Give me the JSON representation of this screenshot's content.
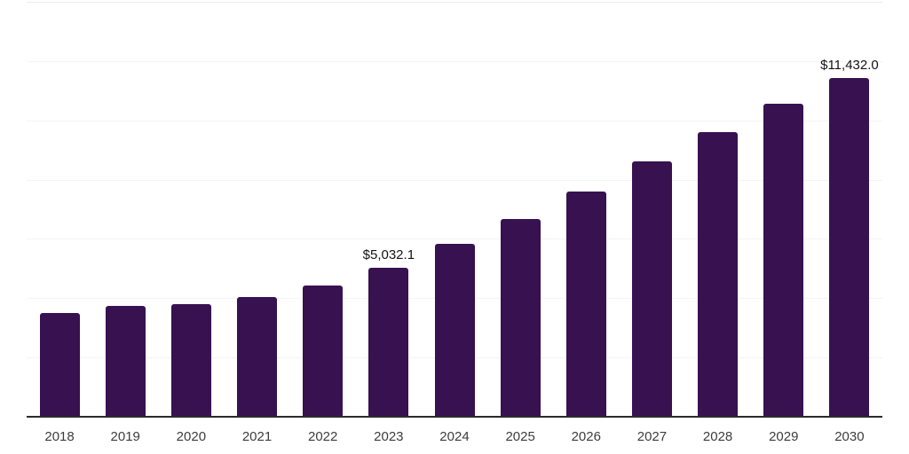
{
  "chart_data": {
    "type": "bar",
    "title": "",
    "xlabel": "",
    "ylabel": "",
    "categories": [
      "2018",
      "2019",
      "2020",
      "2021",
      "2022",
      "2023",
      "2024",
      "2025",
      "2026",
      "2027",
      "2028",
      "2029",
      "2030"
    ],
    "values": [
      3510,
      3750,
      3810,
      4050,
      4440,
      5032.1,
      5820,
      6670,
      7585,
      8615,
      9605,
      10550,
      11432.0
    ],
    "bar_labels": [
      "",
      "",
      "",
      "",
      "",
      "$5,032.1",
      "",
      "",
      "",
      "",
      "",
      "",
      "$11,432.0"
    ],
    "ylim": [
      0,
      14000
    ],
    "gridline_values": [
      2000,
      4000,
      6000,
      8000,
      10000,
      12000,
      14000
    ],
    "grid": "horizontal-only",
    "legend_position": "none",
    "colors": {
      "bar": "#371150",
      "axis_line": "#2b2b2b",
      "gridline": "#f4f4f4",
      "top_gridline": "#ececec",
      "value_label": "#141414",
      "tick_label": "#3d3d3d"
    }
  }
}
